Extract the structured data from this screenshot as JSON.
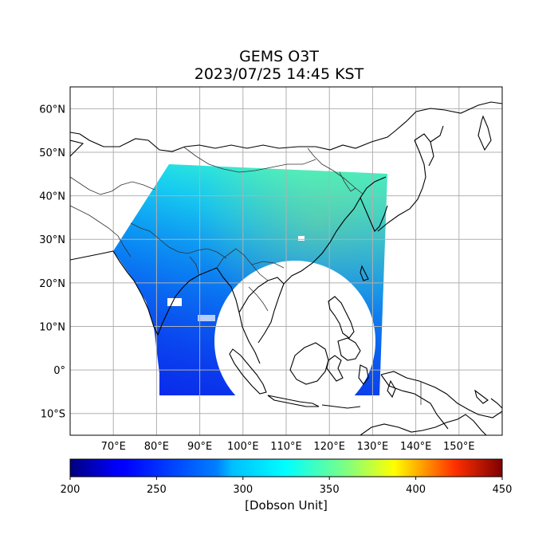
{
  "title": "GEMS O3T",
  "subtitle": "2023/07/25 14:45 KST",
  "map": {
    "lat_ticks": [
      {
        "label": "60°N",
        "value": 60
      },
      {
        "label": "50°N",
        "value": 50
      },
      {
        "label": "40°N",
        "value": 40
      },
      {
        "label": "30°N",
        "value": 30
      },
      {
        "label": "20°N",
        "value": 20
      },
      {
        "label": "10°N",
        "value": 10
      },
      {
        "label": "0°",
        "value": 0
      },
      {
        "label": "10°S",
        "value": -10
      }
    ],
    "lon_ticks": [
      {
        "label": "70°E",
        "value": 70
      },
      {
        "label": "80°E",
        "value": 80
      },
      {
        "label": "90°E",
        "value": 90
      },
      {
        "label": "100°E",
        "value": 100
      },
      {
        "label": "110°E",
        "value": 110
      },
      {
        "label": "120°E",
        "value": 120
      },
      {
        "label": "130°E",
        "value": 130
      },
      {
        "label": "140°E",
        "value": 140
      },
      {
        "label": "150°E",
        "value": 150
      }
    ],
    "lon_range": [
      60,
      160
    ],
    "lat_range": [
      -15,
      65
    ],
    "grid": true
  },
  "colorbar": {
    "colormap": "jet",
    "ticks": [
      "200",
      "250",
      "300",
      "350",
      "400",
      "450"
    ],
    "range": [
      200,
      450
    ],
    "label": "[Dobson Unit]"
  }
}
